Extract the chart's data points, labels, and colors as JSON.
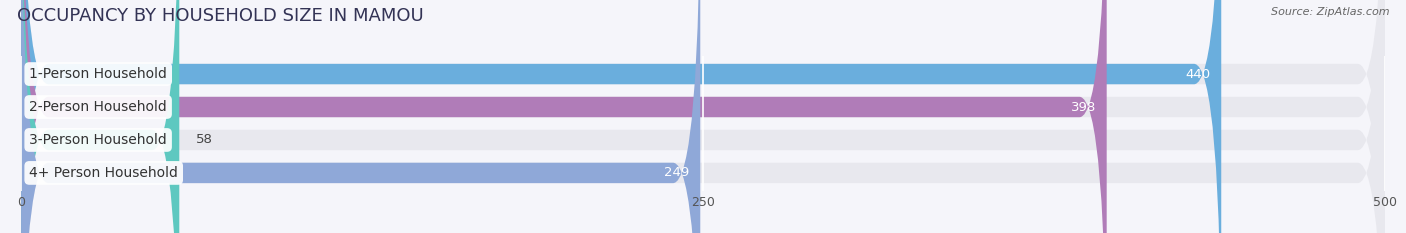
{
  "title": "OCCUPANCY BY HOUSEHOLD SIZE IN MAMOU",
  "source": "Source: ZipAtlas.com",
  "categories": [
    "1-Person Household",
    "2-Person Household",
    "3-Person Household",
    "4+ Person Household"
  ],
  "values": [
    440,
    398,
    58,
    249
  ],
  "bar_colors": [
    "#6aaedd",
    "#b07cb8",
    "#5ec8c0",
    "#8fa8d8"
  ],
  "xlim": [
    0,
    500
  ],
  "xticks": [
    0,
    250,
    500
  ],
  "title_fontsize": 13,
  "label_fontsize": 10,
  "value_fontsize": 9.5,
  "background_color": "#f5f5fa",
  "bar_background": "#e8e8ee",
  "bar_height": 0.62,
  "bar_gap": 0.38
}
